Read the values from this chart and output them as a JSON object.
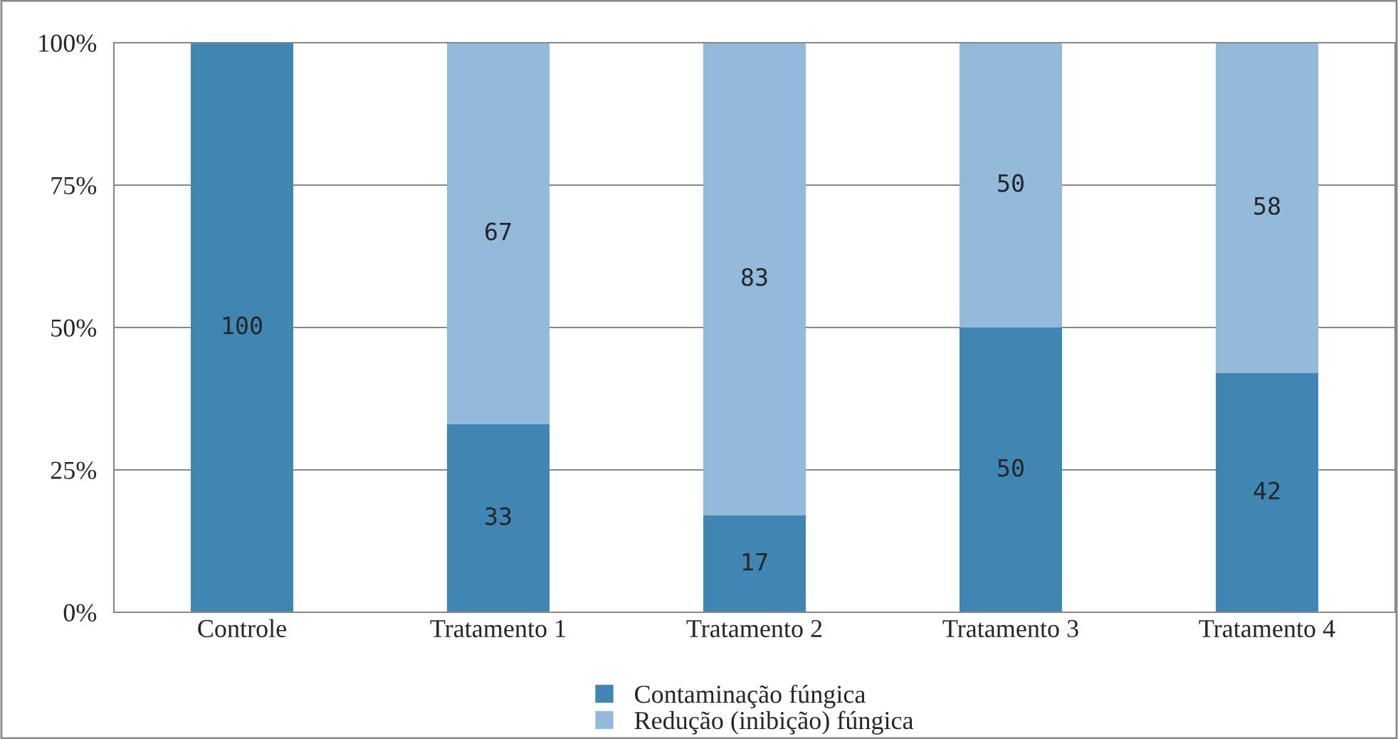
{
  "chart_data": {
    "type": "bar",
    "stacked": true,
    "categories": [
      "Controle",
      "Tratamento 1",
      "Tratamento 2",
      "Tratamento 3",
      "Tratamento 4"
    ],
    "series": [
      {
        "name": "Contaminação fúngica",
        "color": "#3f87b2",
        "values": [
          100,
          33,
          17,
          50,
          42
        ],
        "value_labels": [
          "100",
          "33",
          "17",
          "50",
          "42"
        ]
      },
      {
        "name": "Redução (inibição) fúngica",
        "color": "#93b9db",
        "values": [
          0,
          67,
          83,
          50,
          58
        ],
        "value_labels": [
          null,
          "67",
          "83",
          "50",
          "58"
        ]
      }
    ],
    "ylim": [
      0,
      100
    ],
    "yticks": [
      {
        "value": 0,
        "label": "0%"
      },
      {
        "value": 25,
        "label": "25%"
      },
      {
        "value": 50,
        "label": "50%"
      },
      {
        "value": 75,
        "label": "75%"
      },
      {
        "value": 100,
        "label": "100%"
      }
    ],
    "grid": "y",
    "legend": "bottom"
  }
}
